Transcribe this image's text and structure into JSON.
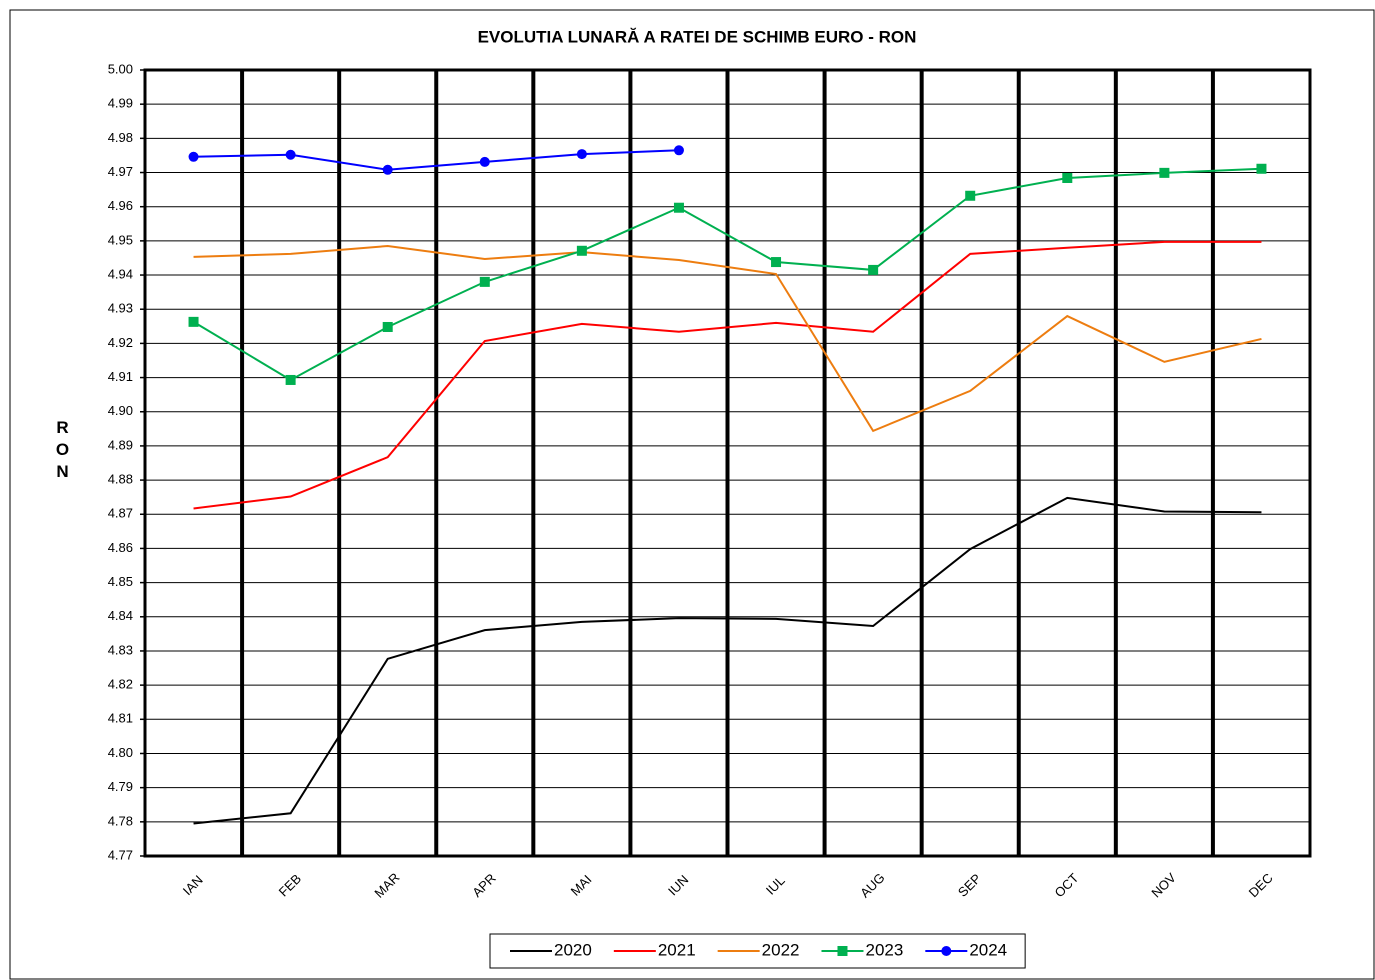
{
  "chart_data": {
    "type": "line",
    "title": "EVOLUTIA LUNARĂ A RATEI DE SCHIMB EURO - RON",
    "y_label": "RON",
    "categories": [
      "IAN",
      "FEB",
      "MAR",
      "APR",
      "MAI",
      "IUN",
      "IUL",
      "AUG",
      "SEP",
      "OCT",
      "NOV",
      "DEC"
    ],
    "ylim": [
      4.77,
      5.0
    ],
    "yticks": [
      {
        "value": 5.0,
        "label": "5.00"
      },
      4.99,
      4.98,
      4.97,
      4.96,
      4.95,
      4.94,
      4.93,
      4.92,
      4.91,
      {
        "value": 4.9,
        "label": "4.90"
      },
      4.89,
      4.88,
      4.87,
      4.86,
      4.85,
      4.84,
      4.83,
      4.82,
      4.81,
      {
        "value": 4.8,
        "label": "4.80"
      },
      4.79,
      4.78,
      4.77
    ],
    "grid": true,
    "legend": "bottom",
    "series": [
      {
        "name": "2020",
        "color": "#000000",
        "marker": "none",
        "values": [
          4.7795,
          4.7825,
          4.8277,
          4.8361,
          4.8385,
          4.8396,
          4.8394,
          4.8373,
          4.8598,
          4.8748,
          4.8708,
          4.8706
        ]
      },
      {
        "name": "2021",
        "color": "#ff0000",
        "marker": "none",
        "values": [
          4.8717,
          4.8752,
          4.8867,
          4.9207,
          4.9257,
          4.9234,
          4.926,
          4.9234,
          4.9462,
          4.948,
          4.9497,
          4.9497
        ]
      },
      {
        "name": "2022",
        "color": "#ed7d10",
        "marker": "none",
        "values": [
          4.9453,
          4.9462,
          4.9485,
          4.9447,
          4.9467,
          4.9444,
          4.9403,
          4.8944,
          4.9061,
          4.928,
          4.9146,
          4.9213
        ]
      },
      {
        "name": "2023",
        "color": "#00b050",
        "marker": "square",
        "values": [
          4.9263,
          4.9093,
          4.9248,
          4.938,
          4.9471,
          4.9597,
          4.9438,
          4.9415,
          4.9632,
          4.9684,
          4.9699,
          4.9711
        ]
      },
      {
        "name": "2024",
        "color": "#0000ff",
        "marker": "circle",
        "values": [
          4.9746,
          4.9752,
          4.9708,
          4.9731,
          4.9754,
          4.9765,
          null,
          null,
          null,
          null,
          null,
          null
        ]
      }
    ]
  }
}
